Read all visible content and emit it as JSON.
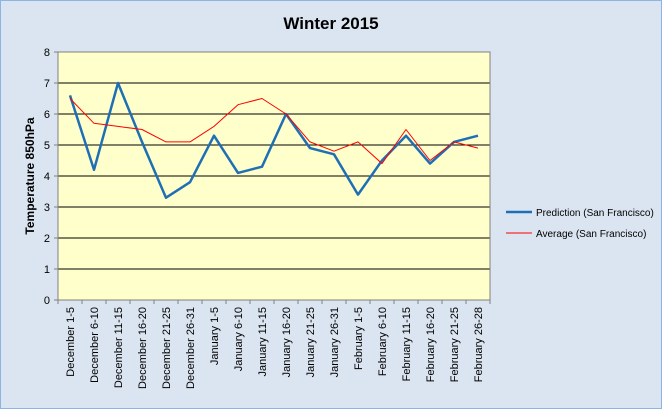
{
  "chart_data": {
    "type": "line",
    "title": "Winter 2015",
    "xlabel": "",
    "ylabel": "Temperature 850hPa",
    "ylim": [
      0,
      8
    ],
    "yticks": [
      "0",
      "1",
      "2",
      "3",
      "4",
      "5",
      "6",
      "7",
      "8"
    ],
    "grid": true,
    "legend_position": "right",
    "plot_background": "#ffffcc",
    "categories": [
      "December 1-5",
      "December 6-10",
      "December 11-15",
      "December 16-20",
      "December 21-25",
      "December 26-31",
      "January 1-5",
      "January 6-10",
      "January 11-15",
      "January 16-20",
      "January 21-25",
      "January 26-31",
      "February 1-5",
      "February 6-10",
      "February 11-15",
      "February 16-20",
      "February 21-25",
      "February 26-28"
    ],
    "series": [
      {
        "name": "Prediction (San Francisco)",
        "color": "#1f6fb4",
        "values": [
          6.6,
          4.2,
          7.0,
          5.1,
          3.3,
          3.8,
          5.3,
          4.1,
          4.3,
          6.0,
          4.9,
          4.7,
          3.4,
          4.5,
          5.3,
          4.4,
          5.1,
          5.3
        ]
      },
      {
        "name": "Average (San Francisco)",
        "color": "#ff0000",
        "values": [
          6.5,
          5.7,
          5.6,
          5.5,
          5.1,
          5.1,
          5.6,
          6.3,
          6.5,
          6.0,
          5.1,
          4.8,
          5.1,
          4.4,
          5.5,
          4.5,
          5.1,
          4.9
        ]
      }
    ]
  }
}
